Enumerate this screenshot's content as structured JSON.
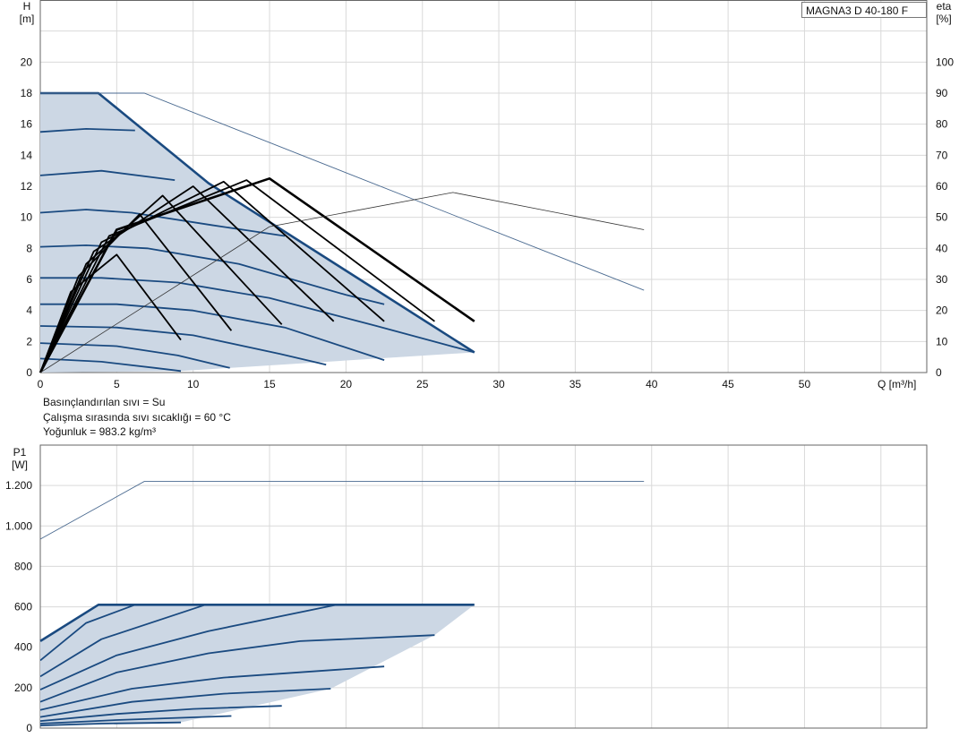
{
  "model": "MAGNA3 D 40-180 F",
  "info": {
    "line1": "Basınçlandırılan sıvı = Su",
    "line2": "Çalışma sırasında sıvı sıcaklığı = 60 °C",
    "line3": "Yoğunluk = 983.2 kg/m³"
  },
  "colors": {
    "curve": "#1a4a80",
    "fill": "#ccd7e4",
    "grid": "#d9d9d9",
    "eff": "#000000",
    "envelope": "#4a6a90"
  },
  "chart_data": [
    {
      "type": "line",
      "title": "",
      "ylabel_top": "H",
      "ylabel_unit": "[m]",
      "y2label_top": "eta",
      "y2label_unit": "[%]",
      "xlabel": "Q [m³/h]",
      "xlim": [
        0,
        58
      ],
      "ylim": [
        0,
        24
      ],
      "y2lim": [
        0,
        120
      ],
      "xticks": [
        0,
        5,
        10,
        15,
        20,
        25,
        30,
        35,
        40,
        45,
        50
      ],
      "yticks": [
        0,
        2,
        4,
        6,
        8,
        10,
        12,
        14,
        16,
        18,
        20
      ],
      "y2ticks": [
        0,
        10,
        20,
        30,
        40,
        50,
        60,
        70,
        80,
        90,
        100
      ],
      "grid": true,
      "head_series": [
        {
          "q": [
            0,
            3.8,
            11.0,
            28.4
          ],
          "h": [
            18.0,
            18.0,
            12.2,
            1.3
          ]
        },
        {
          "q": [
            0,
            3.0,
            6.2
          ],
          "h": [
            15.5,
            15.7,
            15.6
          ]
        },
        {
          "q": [
            0,
            4.0,
            8.8
          ],
          "h": [
            12.7,
            13.0,
            12.4
          ]
        },
        {
          "q": [
            0,
            3.0,
            6.0,
            11.2,
            16.0
          ],
          "h": [
            10.3,
            10.5,
            10.3,
            9.5,
            8.8
          ]
        },
        {
          "q": [
            0,
            3.0,
            7.0,
            13.0,
            20.0,
            22.5
          ],
          "h": [
            8.1,
            8.2,
            8.0,
            7.0,
            5.0,
            4.4
          ]
        },
        {
          "q": [
            0,
            4.0,
            9.0,
            15.0,
            22.0,
            28.4
          ],
          "h": [
            6.1,
            6.1,
            5.8,
            4.8,
            3.0,
            1.3
          ]
        },
        {
          "q": [
            0,
            5.0,
            10.0,
            16.0,
            22.5
          ],
          "h": [
            4.4,
            4.4,
            4.0,
            2.9,
            0.8
          ]
        },
        {
          "q": [
            0,
            5.0,
            10.0,
            15.7,
            18.7
          ],
          "h": [
            3.0,
            2.9,
            2.4,
            1.2,
            0.5
          ]
        },
        {
          "q": [
            0,
            5.0,
            9.0,
            12.4
          ],
          "h": [
            1.9,
            1.7,
            1.1,
            0.3
          ]
        },
        {
          "q": [
            0,
            4.0,
            7.5,
            9.2
          ],
          "h": [
            0.9,
            0.7,
            0.3,
            0.1
          ]
        }
      ],
      "efficiency_series": [
        {
          "q": [
            0,
            2.0,
            5.0,
            9.2
          ],
          "eta": [
            0,
            26,
            38,
            10.5
          ]
        },
        {
          "q": [
            0,
            2.5,
            6.5,
            12.5
          ],
          "eta": [
            0,
            31,
            51,
            13.5
          ]
        },
        {
          "q": [
            0,
            3.0,
            8.0,
            15.8
          ],
          "eta": [
            0,
            35,
            57,
            15.5
          ]
        },
        {
          "q": [
            0,
            3.5,
            10.0,
            19.2
          ],
          "eta": [
            0,
            39,
            60,
            16.5
          ]
        },
        {
          "q": [
            0,
            4.0,
            12.0,
            22.5
          ],
          "eta": [
            0,
            42,
            61.5,
            16.5
          ]
        },
        {
          "q": [
            0,
            4.5,
            13.5,
            25.8
          ],
          "eta": [
            0,
            44,
            62,
            16.5
          ]
        },
        {
          "q": [
            0,
            5.0,
            15.0,
            28.4
          ],
          "eta": [
            0,
            46,
            62.5,
            16.5
          ]
        }
      ],
      "envelope_max_head": {
        "q": [
          0,
          6.8,
          39.5
        ],
        "h": [
          18.0,
          18.0,
          5.3
        ]
      },
      "envelope_max_eff": {
        "q": [
          0,
          15.0,
          27.0,
          39.5
        ],
        "eta": [
          0,
          47,
          58,
          46
        ]
      }
    },
    {
      "type": "line",
      "title": "",
      "ylabel_top": "P1",
      "ylabel_unit": "[W]",
      "xlabel": "",
      "xlim": [
        0,
        58
      ],
      "ylim": [
        0,
        1400
      ],
      "yticks": [
        0,
        200,
        400,
        600,
        800,
        1000,
        1200
      ],
      "ytick_labels": [
        "0",
        "200",
        "400",
        "600",
        "800",
        "1.000",
        "1.200"
      ],
      "grid": true,
      "power_series": [
        {
          "q": [
            0,
            3.8,
            28.4
          ],
          "p": [
            430,
            610,
            610
          ]
        },
        {
          "q": [
            0,
            3.0,
            6.2
          ],
          "p": [
            335,
            520,
            610
          ]
        },
        {
          "q": [
            0,
            4.0,
            10.8
          ],
          "p": [
            255,
            440,
            610
          ]
        },
        {
          "q": [
            0,
            5.0,
            11.0,
            19.4
          ],
          "p": [
            190,
            360,
            480,
            610
          ]
        },
        {
          "q": [
            0,
            5.0,
            11.0,
            17.0,
            25.8
          ],
          "p": [
            130,
            275,
            370,
            430,
            460
          ]
        },
        {
          "q": [
            0,
            6.0,
            12.0,
            22.5
          ],
          "p": [
            90,
            195,
            250,
            305
          ]
        },
        {
          "q": [
            0,
            6.0,
            12.0,
            19.0
          ],
          "p": [
            55,
            130,
            170,
            195
          ]
        },
        {
          "q": [
            0,
            5.0,
            10.0,
            15.8
          ],
          "p": [
            35,
            70,
            95,
            110
          ]
        },
        {
          "q": [
            0,
            5.0,
            12.5
          ],
          "p": [
            22,
            40,
            60
          ]
        },
        {
          "q": [
            0,
            4.0,
            9.2
          ],
          "p": [
            13,
            22,
            28
          ]
        }
      ],
      "envelope_max_power": {
        "q": [
          0,
          6.8,
          39.5
        ],
        "p": [
          935,
          1220,
          1220
        ]
      }
    }
  ]
}
